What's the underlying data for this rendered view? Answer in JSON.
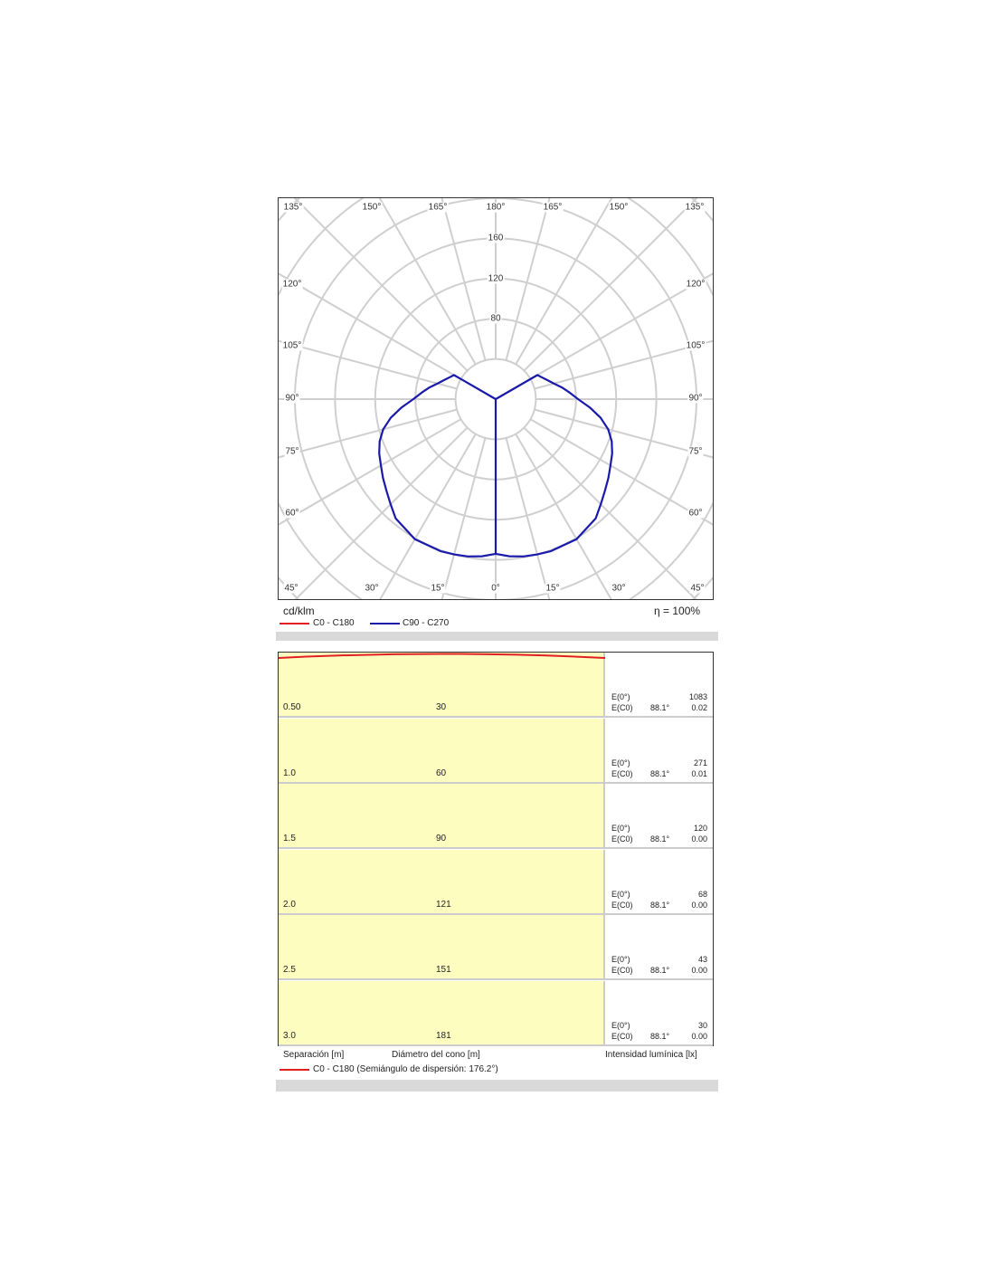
{
  "chart_data": {
    "type": "polar",
    "unit_label": "cd/klm",
    "efficiency_label": "η = 100%",
    "radial_ticks": [
      80,
      120,
      160
    ],
    "radial_rings": [
      40,
      80,
      120,
      160,
      200,
      240,
      280
    ],
    "angle_labels": {
      "top": [
        "135°",
        "150°",
        "165°",
        "180°",
        "165°",
        "150°",
        "135°"
      ],
      "left": [
        "120°",
        "105°",
        "90°",
        "75°",
        "60°"
      ],
      "right": [
        "120°",
        "105°",
        "90°",
        "75°",
        "60°"
      ],
      "bottom": [
        "45°",
        "30°",
        "15°",
        "0°",
        "15°",
        "30°",
        "45°"
      ]
    },
    "legend": [
      {
        "name": "C0 - C180",
        "color": "#e02020"
      },
      {
        "name": "C90 - C270",
        "color": "#1a1aaa"
      }
    ],
    "series": [
      {
        "name": "C90 - C270",
        "color": "#1a1aaa",
        "symmetric": true,
        "gamma": [
          0,
          5,
          10,
          15,
          20,
          30,
          40,
          45,
          50,
          55,
          60,
          65,
          70,
          75,
          80,
          85,
          90,
          95,
          100,
          105,
          110,
          115,
          120,
          180
        ],
        "values": [
          154,
          157,
          159,
          160,
          161,
          161,
          155,
          148,
          142,
          137,
          132,
          128,
          123,
          116,
          106,
          94,
          82,
          74,
          67,
          60,
          55,
          51,
          48,
          0
        ]
      }
    ]
  },
  "cone": {
    "rows": [
      {
        "separation": "0.50",
        "diameter": "30",
        "e0": "1083",
        "ec0": "0.02",
        "angle": "88.1°"
      },
      {
        "separation": "1.0",
        "diameter": "60",
        "e0": "271",
        "ec0": "0.01",
        "angle": "88.1°"
      },
      {
        "separation": "1.5",
        "diameter": "90",
        "e0": "120",
        "ec0": "0.00",
        "angle": "88.1°"
      },
      {
        "separation": "2.0",
        "diameter": "121",
        "e0": "68",
        "ec0": "0.00",
        "angle": "88.1°"
      },
      {
        "separation": "2.5",
        "diameter": "151",
        "e0": "43",
        "ec0": "0.00",
        "angle": "88.1°"
      },
      {
        "separation": "3.0",
        "diameter": "181",
        "e0": "30",
        "ec0": "0.00",
        "angle": "88.1°"
      }
    ],
    "e0_label": "E(0°)",
    "ec0_label": "E(C0)",
    "col_separation": "Separación [m]",
    "col_diameter": "Diámetro del cono [m]",
    "col_intensity": "Intensidad lumínica [lx]",
    "legend": "C0 - C180 (Semiángulo de dispersión: 176.2°)",
    "legend_color": "#e02020"
  }
}
